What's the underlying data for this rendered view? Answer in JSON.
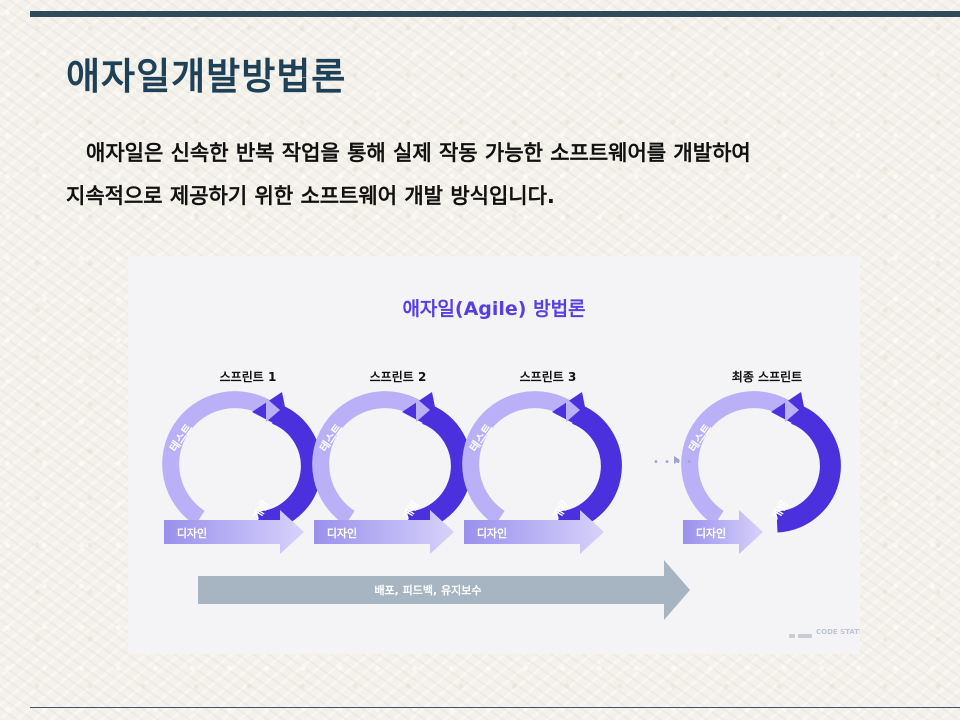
{
  "slide": {
    "title": "애자일개발방법론",
    "paragraph_line1": "애자일은 신속한 반복 작업을 통해 실제 작동 가능한 소프트웨어를 개발하여",
    "paragraph_line2": "지속적으로 제공하기 위한 소프트웨어 개발 방식입니다."
  },
  "diagram": {
    "title": "애자일(Agile) 방법론",
    "sprints": [
      {
        "label": "스프린트 1",
        "test": "테스트",
        "design": "디자인",
        "dev": "개발"
      },
      {
        "label": "스프린트 2",
        "test": "테스트",
        "design": "디자인",
        "dev": "개발"
      },
      {
        "label": "스프린트 3",
        "test": "테스트",
        "design": "디자인",
        "dev": "개발"
      },
      {
        "label": "최종 스프린트",
        "test": "테스트",
        "design": "디자인",
        "dev": "개발"
      }
    ],
    "continuation": "• • • •",
    "bottom_arrow": "배포, 피드백, 유지보수",
    "watermark": "CODE STATES",
    "colors": {
      "light_purple": "#b9b0f7",
      "dark_purple": "#4b30de",
      "gray_arrow": "#a7b4c2",
      "title_purple": "#5a3fe0"
    }
  }
}
